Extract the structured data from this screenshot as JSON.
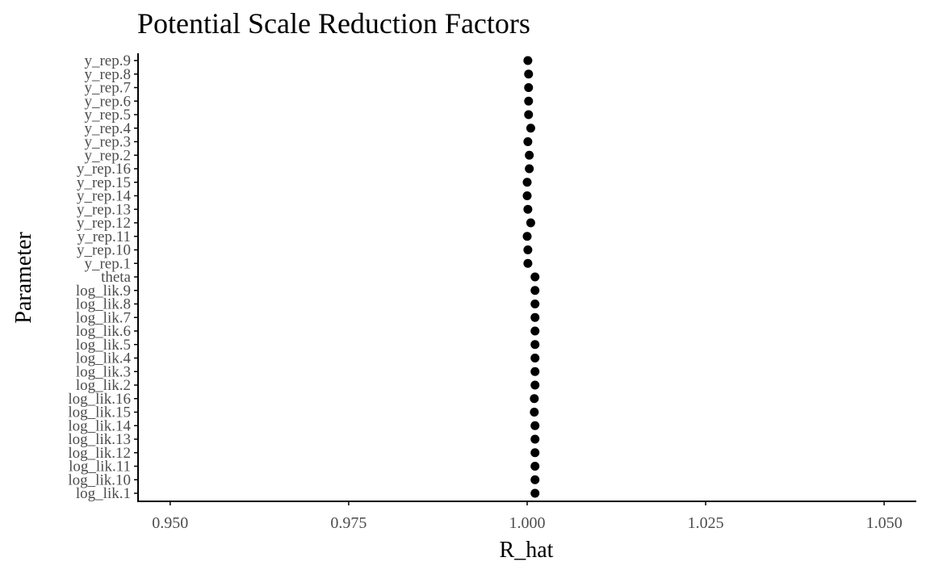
{
  "chart_data": {
    "type": "scatter",
    "title": "Potential Scale Reduction Factors",
    "xlabel": "R_hat",
    "ylabel": "Parameter",
    "xlim": [
      0.9455,
      1.0545
    ],
    "x_ticks": [
      0.95,
      0.975,
      1.0,
      1.025,
      1.05
    ],
    "x_tick_labels": [
      "0.950",
      "0.975",
      "1.000",
      "1.025",
      "1.050"
    ],
    "grid": false,
    "legend": "none",
    "point_color": "#000000",
    "categories": [
      "log_lik.1",
      "log_lik.10",
      "log_lik.11",
      "log_lik.12",
      "log_lik.13",
      "log_lik.14",
      "log_lik.15",
      "log_lik.16",
      "log_lik.2",
      "log_lik.3",
      "log_lik.4",
      "log_lik.5",
      "log_lik.6",
      "log_lik.7",
      "log_lik.8",
      "log_lik.9",
      "theta",
      "y_rep.1",
      "y_rep.10",
      "y_rep.11",
      "y_rep.12",
      "y_rep.13",
      "y_rep.14",
      "y_rep.15",
      "y_rep.16",
      "y_rep.2",
      "y_rep.3",
      "y_rep.4",
      "y_rep.5",
      "y_rep.6",
      "y_rep.7",
      "y_rep.8",
      "y_rep.9"
    ],
    "values": [
      1.0011,
      1.0011,
      1.0011,
      1.0011,
      1.0011,
      1.0011,
      1.001,
      1.001,
      1.0011,
      1.0011,
      1.0011,
      1.0011,
      1.0011,
      1.0011,
      1.0011,
      1.0011,
      1.0011,
      1.0001,
      1.0001,
      1.0,
      1.0005,
      1.0001,
      1.0,
      1.0,
      1.0003,
      1.0003,
      1.0001,
      1.0005,
      1.0002,
      1.0002,
      1.0002,
      1.0002,
      1.0001
    ]
  }
}
